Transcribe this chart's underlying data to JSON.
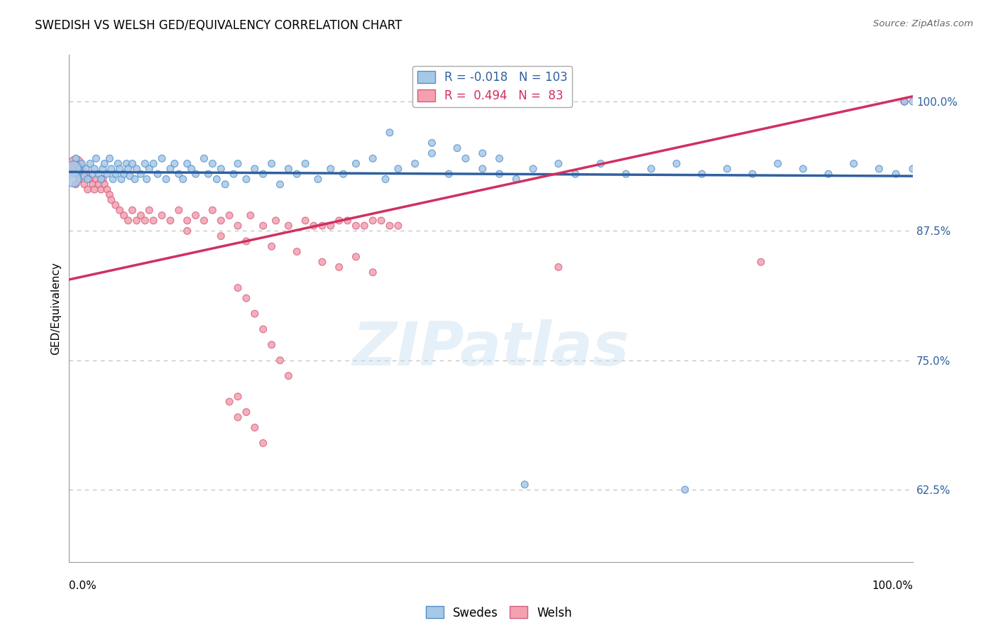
{
  "title": "SWEDISH VS WELSH GED/EQUIVALENCY CORRELATION CHART",
  "source": "Source: ZipAtlas.com",
  "ylabel": "GED/Equivalency",
  "y_ticks": [
    0.625,
    0.75,
    0.875,
    1.0
  ],
  "y_tick_labels": [
    "62.5%",
    "75.0%",
    "87.5%",
    "100.0%"
  ],
  "x_range": [
    0.0,
    1.0
  ],
  "y_range": [
    0.555,
    1.045
  ],
  "legend_swedes_label": "Swedes",
  "legend_welsh_label": "Welsh",
  "blue_color": "#a8c8e8",
  "pink_color": "#f4a0b0",
  "blue_edge_color": "#5090c8",
  "pink_edge_color": "#d06080",
  "blue_line_color": "#3060a0",
  "pink_line_color": "#d03060",
  "blue_R": -0.018,
  "blue_N": 103,
  "pink_R": 0.494,
  "pink_N": 83,
  "watermark_text": "ZIPatlas",
  "blue_line_y0": 0.932,
  "blue_line_y1": 0.928,
  "pink_line_y0": 0.828,
  "pink_line_y1": 1.005,
  "blue_x": [
    0.008,
    0.01,
    0.012,
    0.015,
    0.018,
    0.02,
    0.022,
    0.025,
    0.028,
    0.03,
    0.032,
    0.035,
    0.038,
    0.04,
    0.042,
    0.045,
    0.048,
    0.05,
    0.052,
    0.055,
    0.058,
    0.06,
    0.062,
    0.065,
    0.068,
    0.07,
    0.072,
    0.075,
    0.078,
    0.08,
    0.085,
    0.09,
    0.092,
    0.095,
    0.1,
    0.105,
    0.11,
    0.115,
    0.12,
    0.125,
    0.13,
    0.135,
    0.14,
    0.145,
    0.15,
    0.16,
    0.165,
    0.17,
    0.175,
    0.18,
    0.185,
    0.195,
    0.2,
    0.21,
    0.22,
    0.23,
    0.24,
    0.25,
    0.26,
    0.27,
    0.28,
    0.295,
    0.31,
    0.325,
    0.34,
    0.36,
    0.375,
    0.39,
    0.41,
    0.43,
    0.45,
    0.47,
    0.49,
    0.51,
    0.53,
    0.55,
    0.58,
    0.6,
    0.63,
    0.66,
    0.69,
    0.72,
    0.75,
    0.78,
    0.81,
    0.84,
    0.87,
    0.9,
    0.93,
    0.96,
    0.98,
    0.99,
    1.0,
    0.005,
    0.005,
    0.54,
    0.73,
    1.0,
    0.38,
    0.43,
    0.46,
    0.49,
    0.51
  ],
  "blue_y": [
    0.945,
    0.93,
    0.935,
    0.94,
    0.928,
    0.935,
    0.925,
    0.94,
    0.93,
    0.935,
    0.945,
    0.93,
    0.925,
    0.935,
    0.94,
    0.93,
    0.945,
    0.935,
    0.925,
    0.93,
    0.94,
    0.935,
    0.925,
    0.93,
    0.94,
    0.935,
    0.928,
    0.94,
    0.925,
    0.935,
    0.93,
    0.94,
    0.925,
    0.935,
    0.94,
    0.93,
    0.945,
    0.925,
    0.935,
    0.94,
    0.93,
    0.925,
    0.94,
    0.935,
    0.93,
    0.945,
    0.93,
    0.94,
    0.925,
    0.935,
    0.92,
    0.93,
    0.94,
    0.925,
    0.935,
    0.93,
    0.94,
    0.92,
    0.935,
    0.93,
    0.94,
    0.925,
    0.935,
    0.93,
    0.94,
    0.945,
    0.925,
    0.935,
    0.94,
    0.95,
    0.93,
    0.945,
    0.935,
    0.93,
    0.925,
    0.935,
    0.94,
    0.93,
    0.94,
    0.93,
    0.935,
    0.94,
    0.93,
    0.935,
    0.93,
    0.94,
    0.935,
    0.93,
    0.94,
    0.935,
    0.93,
    1.0,
    1.0,
    0.935,
    0.925,
    0.63,
    0.625,
    0.935,
    0.97,
    0.96,
    0.955,
    0.95,
    0.945
  ],
  "blue_sizes": [
    50,
    50,
    50,
    50,
    50,
    50,
    50,
    50,
    50,
    50,
    50,
    50,
    50,
    50,
    50,
    50,
    50,
    50,
    50,
    50,
    50,
    50,
    50,
    50,
    50,
    50,
    50,
    50,
    50,
    50,
    50,
    50,
    50,
    50,
    50,
    50,
    50,
    50,
    50,
    50,
    50,
    50,
    50,
    50,
    50,
    50,
    50,
    50,
    50,
    50,
    50,
    50,
    50,
    50,
    50,
    50,
    50,
    50,
    50,
    50,
    50,
    50,
    50,
    50,
    50,
    50,
    50,
    50,
    50,
    50,
    50,
    50,
    50,
    50,
    50,
    50,
    50,
    50,
    50,
    50,
    50,
    50,
    50,
    50,
    50,
    50,
    50,
    50,
    50,
    50,
    50,
    50,
    50,
    250,
    250,
    50,
    50,
    50,
    50,
    50,
    50,
    50,
    50
  ],
  "pink_x": [
    0.005,
    0.008,
    0.01,
    0.012,
    0.015,
    0.018,
    0.02,
    0.022,
    0.025,
    0.028,
    0.03,
    0.032,
    0.035,
    0.038,
    0.04,
    0.042,
    0.045,
    0.048,
    0.05,
    0.055,
    0.06,
    0.065,
    0.07,
    0.075,
    0.08,
    0.085,
    0.09,
    0.095,
    0.1,
    0.11,
    0.12,
    0.13,
    0.14,
    0.15,
    0.16,
    0.17,
    0.18,
    0.19,
    0.2,
    0.215,
    0.23,
    0.245,
    0.26,
    0.28,
    0.3,
    0.32,
    0.34,
    0.36,
    0.38,
    0.29,
    0.31,
    0.33,
    0.35,
    0.37,
    0.39,
    0.14,
    0.18,
    0.21,
    0.24,
    0.27,
    0.3,
    0.32,
    0.36,
    0.34,
    0.58,
    0.82,
    0.99,
    0.008,
    0.008,
    0.2,
    0.21,
    0.22,
    0.23,
    0.24,
    0.25,
    0.26,
    0.19,
    0.2,
    0.2,
    0.21,
    0.22,
    0.23,
    0.99
  ],
  "pink_y": [
    0.935,
    0.92,
    0.935,
    0.925,
    0.935,
    0.92,
    0.93,
    0.915,
    0.925,
    0.92,
    0.915,
    0.925,
    0.92,
    0.915,
    0.925,
    0.92,
    0.915,
    0.91,
    0.905,
    0.9,
    0.895,
    0.89,
    0.885,
    0.895,
    0.885,
    0.89,
    0.885,
    0.895,
    0.885,
    0.89,
    0.885,
    0.895,
    0.885,
    0.89,
    0.885,
    0.895,
    0.885,
    0.89,
    0.88,
    0.89,
    0.88,
    0.885,
    0.88,
    0.885,
    0.88,
    0.885,
    0.88,
    0.885,
    0.88,
    0.88,
    0.88,
    0.885,
    0.88,
    0.885,
    0.88,
    0.875,
    0.87,
    0.865,
    0.86,
    0.855,
    0.845,
    0.84,
    0.835,
    0.85,
    0.84,
    0.845,
    1.0,
    0.94,
    0.935,
    0.82,
    0.81,
    0.795,
    0.78,
    0.765,
    0.75,
    0.735,
    0.71,
    0.695,
    0.715,
    0.7,
    0.685,
    0.67,
    1.0
  ],
  "pink_sizes": [
    50,
    50,
    50,
    50,
    50,
    50,
    50,
    50,
    50,
    50,
    50,
    50,
    50,
    50,
    50,
    50,
    50,
    50,
    50,
    50,
    50,
    50,
    50,
    50,
    50,
    50,
    50,
    50,
    50,
    50,
    50,
    50,
    50,
    50,
    50,
    50,
    50,
    50,
    50,
    50,
    50,
    50,
    50,
    50,
    50,
    50,
    50,
    50,
    50,
    50,
    50,
    50,
    50,
    50,
    50,
    50,
    50,
    50,
    50,
    50,
    50,
    50,
    50,
    50,
    50,
    50,
    50,
    250,
    250,
    50,
    50,
    50,
    50,
    50,
    50,
    50,
    50,
    50,
    50,
    50,
    50,
    50,
    50
  ]
}
